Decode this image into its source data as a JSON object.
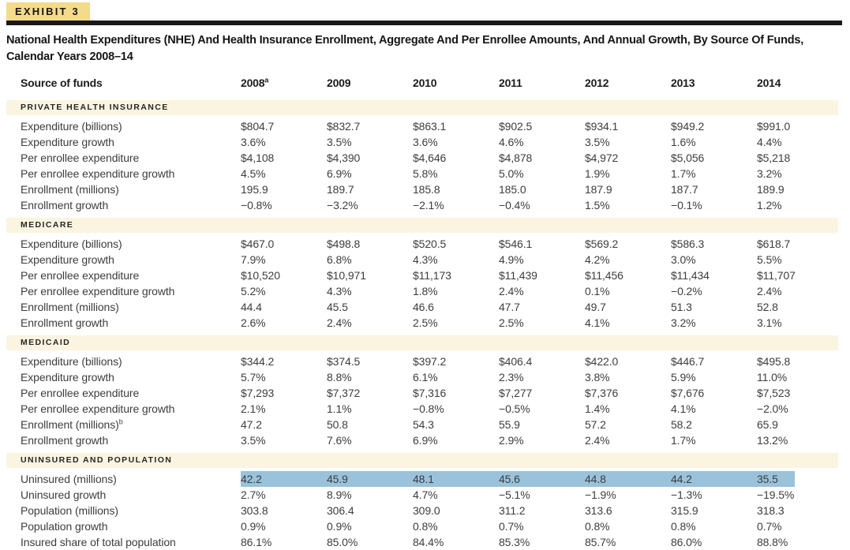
{
  "header": {
    "badge": "EXHIBIT 3",
    "title_line1": "National Health Expenditures (NHE) And Health Insurance Enrollment, Aggregate And Per Enrollee Amounts, And Annual Growth, By Source Of Funds,",
    "title_line2": "Calendar Years 2008–14"
  },
  "colors": {
    "badge_bg": "#F4DB8A",
    "rule_bar": "#191919",
    "section_band_bg": "#FBF4E0",
    "highlight_bg": "#9AC2DA"
  },
  "table": {
    "columns": [
      {
        "label": "Source of funds",
        "sup": ""
      },
      {
        "label": "2008",
        "sup": "a"
      },
      {
        "label": "2009",
        "sup": ""
      },
      {
        "label": "2010",
        "sup": ""
      },
      {
        "label": "2011",
        "sup": ""
      },
      {
        "label": "2012",
        "sup": ""
      },
      {
        "label": "2013",
        "sup": ""
      },
      {
        "label": "2014",
        "sup": ""
      }
    ],
    "sections": [
      {
        "heading": "PRIVATE HEALTH INSURANCE",
        "rows": [
          {
            "label": "Expenditure (billions)",
            "sup": "",
            "highlight": false,
            "values": [
              "$804.7",
              "$832.7",
              "$863.1",
              "$902.5",
              "$934.1",
              "$949.2",
              "$991.0"
            ]
          },
          {
            "label": "Expenditure growth",
            "sup": "",
            "highlight": false,
            "values": [
              "3.6%",
              "3.5%",
              "3.6%",
              "4.6%",
              "3.5%",
              "1.6%",
              "4.4%"
            ]
          },
          {
            "label": "Per enrollee expenditure",
            "sup": "",
            "highlight": false,
            "values": [
              "$4,108",
              "$4,390",
              "$4,646",
              "$4,878",
              "$4,972",
              "$5,056",
              "$5,218"
            ]
          },
          {
            "label": "Per enrollee expenditure growth",
            "sup": "",
            "highlight": false,
            "values": [
              "4.5%",
              "6.9%",
              "5.8%",
              "5.0%",
              "1.9%",
              "1.7%",
              "3.2%"
            ]
          },
          {
            "label": "Enrollment (millions)",
            "sup": "",
            "highlight": false,
            "values": [
              "195.9",
              "189.7",
              "185.8",
              "185.0",
              "187.9",
              "187.7",
              "189.9"
            ]
          },
          {
            "label": "Enrollment growth",
            "sup": "",
            "highlight": false,
            "values": [
              "−0.8%",
              "−3.2%",
              "−2.1%",
              "−0.4%",
              "1.5%",
              "−0.1%",
              "1.2%"
            ]
          }
        ]
      },
      {
        "heading": "MEDICARE",
        "rows": [
          {
            "label": "Expenditure (billions)",
            "sup": "",
            "highlight": false,
            "values": [
              "$467.0",
              "$498.8",
              "$520.5",
              "$546.1",
              "$569.2",
              "$586.3",
              "$618.7"
            ]
          },
          {
            "label": "Expenditure growth",
            "sup": "",
            "highlight": false,
            "values": [
              "7.9%",
              "6.8%",
              "4.3%",
              "4.9%",
              "4.2%",
              "3.0%",
              "5.5%"
            ]
          },
          {
            "label": "Per enrollee expenditure",
            "sup": "",
            "highlight": false,
            "values": [
              "$10,520",
              "$10,971",
              "$11,173",
              "$11,439",
              "$11,456",
              "$11,434",
              "$11,707"
            ]
          },
          {
            "label": "Per enrollee expenditure growth",
            "sup": "",
            "highlight": false,
            "values": [
              "5.2%",
              "4.3%",
              "1.8%",
              "2.4%",
              "0.1%",
              "−0.2%",
              "2.4%"
            ]
          },
          {
            "label": "Enrollment (millions)",
            "sup": "",
            "highlight": false,
            "values": [
              "44.4",
              "45.5",
              "46.6",
              "47.7",
              "49.7",
              "51.3",
              "52.8"
            ]
          },
          {
            "label": "Enrollment growth",
            "sup": "",
            "highlight": false,
            "values": [
              "2.6%",
              "2.4%",
              "2.5%",
              "2.5%",
              "4.1%",
              "3.2%",
              "3.1%"
            ]
          }
        ]
      },
      {
        "heading": "MEDICAID",
        "rows": [
          {
            "label": "Expenditure (billions)",
            "sup": "",
            "highlight": false,
            "values": [
              "$344.2",
              "$374.5",
              "$397.2",
              "$406.4",
              "$422.0",
              "$446.7",
              "$495.8"
            ]
          },
          {
            "label": "Expenditure growth",
            "sup": "",
            "highlight": false,
            "values": [
              "5.7%",
              "8.8%",
              "6.1%",
              "2.3%",
              "3.8%",
              "5.9%",
              "11.0%"
            ]
          },
          {
            "label": "Per enrollee expenditure",
            "sup": "",
            "highlight": false,
            "values": [
              "$7,293",
              "$7,372",
              "$7,316",
              "$7,277",
              "$7,376",
              "$7,676",
              "$7,523"
            ]
          },
          {
            "label": "Per enrollee expenditure growth",
            "sup": "",
            "highlight": false,
            "values": [
              "2.1%",
              "1.1%",
              "−0.8%",
              "−0.5%",
              "1.4%",
              "4.1%",
              "−2.0%"
            ]
          },
          {
            "label": "Enrollment (millions)",
            "sup": "b",
            "highlight": false,
            "values": [
              "47.2",
              "50.8",
              "54.3",
              "55.9",
              "57.2",
              "58.2",
              "65.9"
            ]
          },
          {
            "label": "Enrollment growth",
            "sup": "",
            "highlight": false,
            "values": [
              "3.5%",
              "7.6%",
              "6.9%",
              "2.9%",
              "2.4%",
              "1.7%",
              "13.2%"
            ]
          }
        ]
      },
      {
        "heading": "UNINSURED AND POPULATION",
        "rows": [
          {
            "label": "Uninsured (millions)",
            "sup": "",
            "highlight": true,
            "values": [
              "42.2",
              "45.9",
              "48.1",
              "45.6",
              "44.8",
              "44.2",
              "35.5"
            ]
          },
          {
            "label": "Uninsured growth",
            "sup": "",
            "highlight": false,
            "values": [
              "2.7%",
              "8.9%",
              "4.7%",
              "−5.1%",
              "−1.9%",
              "−1.3%",
              "−19.5%"
            ]
          },
          {
            "label": "Population (millions)",
            "sup": "",
            "highlight": false,
            "values": [
              "303.8",
              "306.4",
              "309.0",
              "311.2",
              "313.6",
              "315.9",
              "318.3"
            ]
          },
          {
            "label": "Population growth",
            "sup": "",
            "highlight": false,
            "values": [
              "0.9%",
              "0.9%",
              "0.8%",
              "0.7%",
              "0.8%",
              "0.8%",
              "0.7%"
            ]
          },
          {
            "label": "Insured share of total population",
            "sup": "",
            "highlight": false,
            "values": [
              "86.1%",
              "85.0%",
              "84.4%",
              "85.3%",
              "85.7%",
              "86.0%",
              "88.8%"
            ]
          }
        ]
      }
    ]
  }
}
